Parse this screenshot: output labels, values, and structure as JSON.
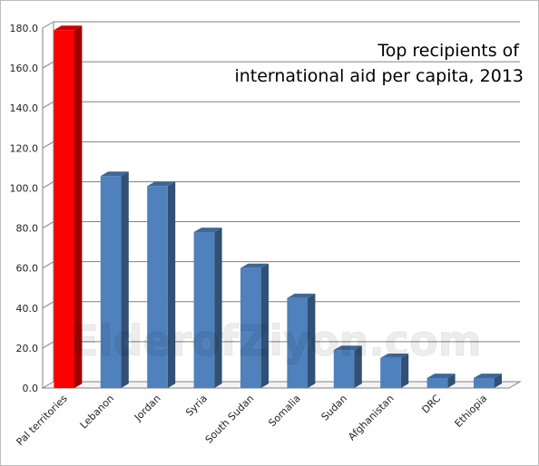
{
  "chart_data": {
    "type": "bar",
    "title_lines": [
      "Top recipients of",
      "international aid per capita, 2013"
    ],
    "xlabel": "",
    "ylabel": "",
    "categories": [
      "Pal territories",
      "Lebanon",
      "Jordan",
      "Syria",
      "South Sudan",
      "Somalia",
      "Sudan",
      "Afghanistan",
      "DRC",
      "Ethiopia"
    ],
    "values": [
      179,
      106,
      101,
      78,
      60,
      45,
      19,
      15,
      5,
      5
    ],
    "ylim": [
      0,
      180
    ],
    "y_ticks": [
      "0.0",
      "20.0",
      "40.0",
      "60.0",
      "80.0",
      "100.0",
      "120.0",
      "140.0",
      "160.0",
      "180.0"
    ],
    "grid": true,
    "legend": "none",
    "highlight_index": 0,
    "colors": {
      "highlight": "#ff0000",
      "bar": "#4f81bd",
      "grid": "#808080"
    }
  },
  "watermark": "ElderofZiyon.com"
}
